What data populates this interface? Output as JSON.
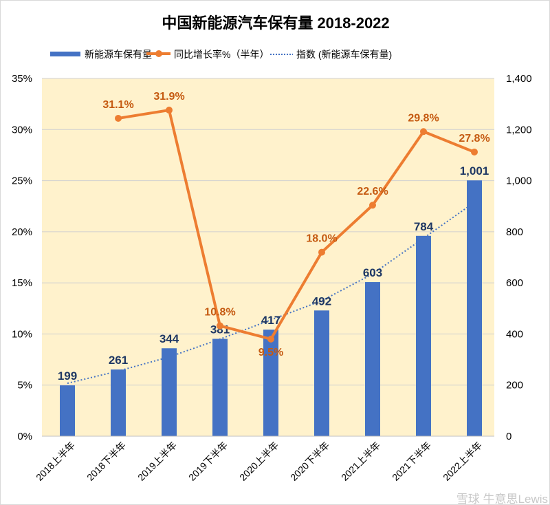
{
  "chart_data": {
    "type": "bar+line",
    "title": "中国新能源汽车保有量 2018-2022",
    "categories": [
      "2018上半年",
      "2018下半年",
      "2019上半年",
      "2019下半年",
      "2020上半年",
      "2020下半年",
      "2021上半年",
      "2021下半年",
      "2022上半年"
    ],
    "series": [
      {
        "name": "新能源车保有量",
        "type": "bar",
        "axis": "right",
        "values": [
          199,
          261,
          344,
          381,
          417,
          492,
          603,
          784,
          1001
        ],
        "labels": [
          "199",
          "261",
          "344",
          "381",
          "417",
          "492",
          "603",
          "784",
          "1,001"
        ],
        "color": "#4472c4"
      },
      {
        "name": "同比增长率%（半年）",
        "type": "line",
        "axis": "left",
        "values": [
          null,
          31.1,
          31.9,
          10.8,
          9.5,
          18.0,
          22.6,
          29.8,
          27.8
        ],
        "labels": [
          "",
          "31.1%",
          "31.9%",
          "10.8%",
          "9.5%",
          "18.0%",
          "22.6%",
          "29.8%",
          "27.8%"
        ],
        "color": "#ed7d31"
      },
      {
        "name": "指数 (新能源车保有量)",
        "type": "trendline",
        "axis": "right",
        "values": [
          207,
          255,
          310,
          380,
          455,
          530,
          635,
          775,
          915
        ],
        "color": "#4472c4"
      }
    ],
    "left_axis": {
      "ylim": [
        0,
        35
      ],
      "ticks": [
        "0%",
        "5%",
        "10%",
        "15%",
        "20%",
        "25%",
        "30%",
        "35%"
      ]
    },
    "right_axis": {
      "ylim": [
        0,
        1400
      ],
      "ticks": [
        "0",
        "200",
        "400",
        "600",
        "800",
        "1,000",
        "1,200",
        "1,400"
      ]
    },
    "legend": "top",
    "plot_background": "#fff2cc",
    "grid": true
  },
  "watermark": "雪球 牛意思Lewis"
}
